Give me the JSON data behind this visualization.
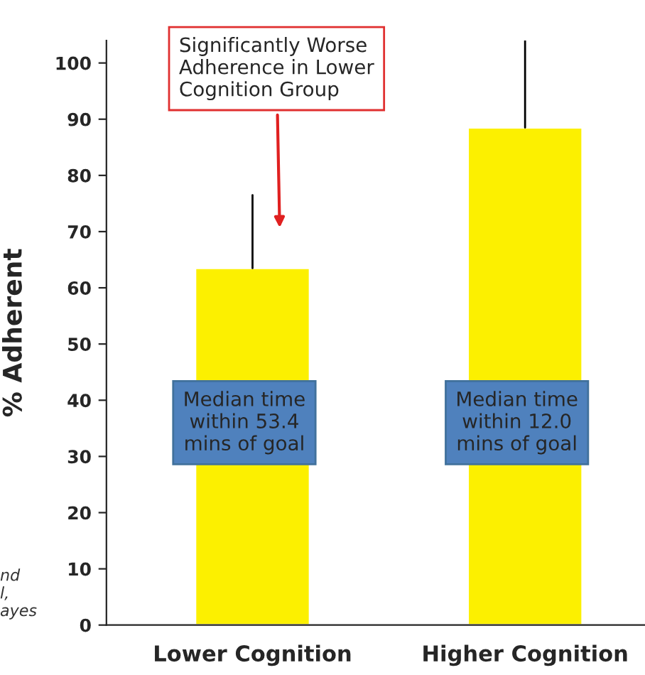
{
  "chart_data": {
    "type": "bar",
    "categories": [
      "Lower Cognition",
      "Higher Cognition"
    ],
    "values": [
      63.5,
      88.5
    ],
    "color": "#fcf000",
    "errors": [
      [
        63.5,
        76.5
      ],
      [
        88.5,
        104
      ]
    ],
    "ylabel": "% Adherent",
    "ylim": [
      0,
      104
    ],
    "yticks": [
      0,
      10,
      20,
      30,
      40,
      50,
      60,
      70,
      80,
      90,
      100
    ],
    "grid": false,
    "annotations": [
      "Significantly Worse\nAdherence in Lower\nCognition Group",
      "Median time\nwithin 53.4\nmins of goal",
      "Median time\nwithin 12.0\nmins of goal",
      "nd\nl,\nayes"
    ]
  }
}
